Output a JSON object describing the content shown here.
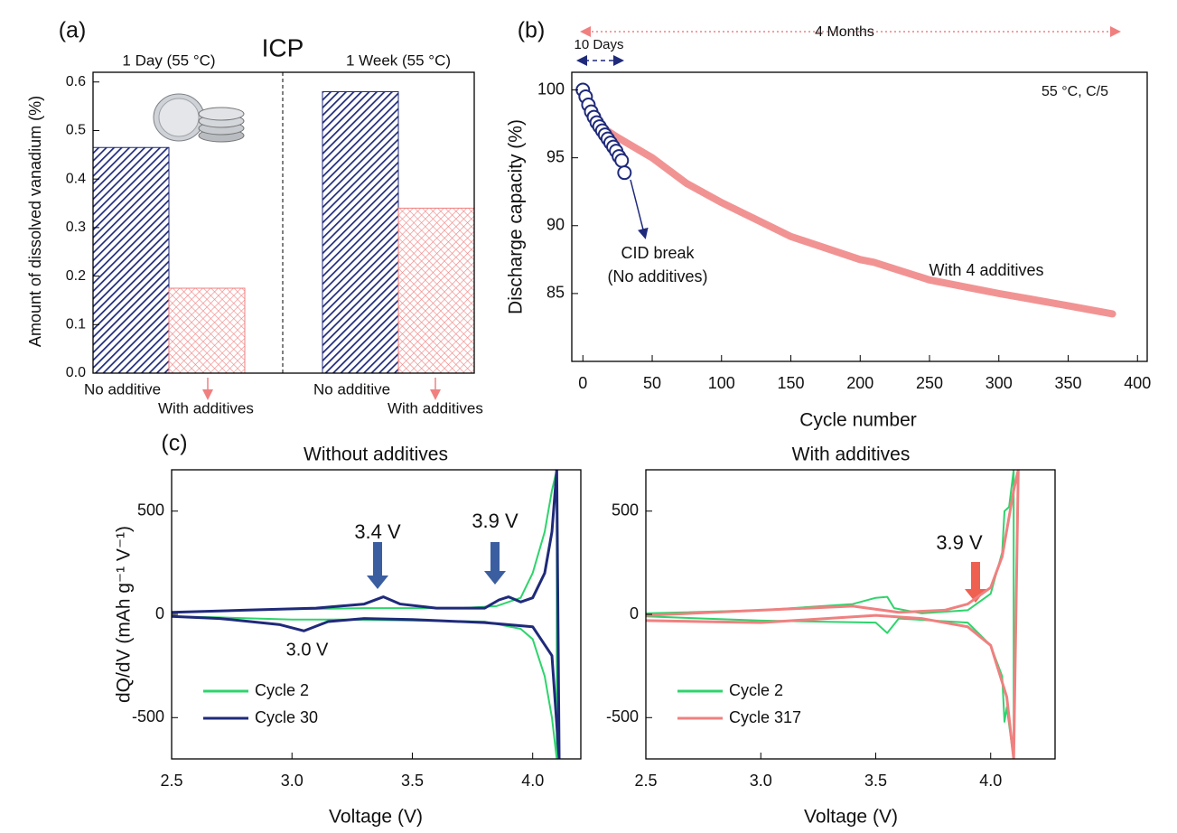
{
  "chart_data": [
    {
      "type": "bar",
      "panel_label": "(a)",
      "title": "ICP",
      "y_label": "Amount of dissolved vanadium (%)",
      "categories": [
        "1 Day (55 °C)",
        "1 Week (55 °C)"
      ],
      "series": [
        {
          "name": "No additive",
          "color": "#1f2a7a",
          "values": [
            0.465,
            0.58
          ]
        },
        {
          "name": "With additives",
          "color": "#f08080",
          "values": [
            0.175,
            0.34
          ]
        }
      ],
      "ylim": [
        0,
        0.62
      ],
      "yticks": [
        {
          "value": 0,
          "label": "0.0"
        },
        0.1,
        0.2,
        0.3,
        0.4,
        0.5,
        0.6
      ]
    },
    {
      "type": "scatter",
      "panel_label": "(b)",
      "x_label": "Cycle number",
      "y_label": "Discharge capacity (%)",
      "annotations": [
        "10 Days",
        "4 Months",
        "55 °C, C/5",
        "CID break",
        "(No additives)"
      ],
      "series": [
        {
          "name": "With 4 additives",
          "color": "#f08080",
          "style": "line",
          "x": [
            0,
            10,
            25,
            50,
            75,
            100,
            150,
            200,
            210,
            250,
            300,
            350,
            382
          ],
          "values": [
            100,
            97.5,
            96.5,
            95,
            93.1,
            91.7,
            89.2,
            87.5,
            87.3,
            86,
            85,
            84.1,
            83.5
          ]
        },
        {
          "color": "#1f2a7a",
          "style": "markers",
          "x": [
            0,
            2,
            4,
            6,
            8,
            10,
            12,
            14,
            16,
            18,
            20,
            22,
            24,
            26,
            28,
            30
          ],
          "values": [
            100,
            99.5,
            98.9,
            98.4,
            98,
            97.6,
            97.3,
            97,
            96.7,
            96.4,
            96.1,
            95.8,
            95.5,
            95.1,
            94.8,
            93.9
          ]
        }
      ],
      "xlim": [
        -8,
        407
      ],
      "ylim": [
        80,
        101.3
      ],
      "xticks": [
        0,
        50,
        100,
        150,
        200,
        250,
        300,
        350,
        400
      ],
      "yticks": [
        85,
        90,
        95,
        100
      ]
    },
    {
      "type": "line",
      "panel_label": "(c)",
      "title": "Without additives",
      "x_label": "Voltage (V)",
      "y_label": "dQ/dV (mAh g⁻¹ V⁻¹)",
      "annotations": [
        "3.4 V",
        "3.9 V",
        "3.0 V"
      ],
      "legend": "lower left",
      "series": [
        {
          "name": "Cycle 2",
          "color": "#2ed46c",
          "x": [
            2.5,
            2.8,
            3.0,
            3.3,
            3.5,
            3.7,
            3.85,
            3.95,
            4.0,
            4.05,
            4.08,
            4.1,
            4.1,
            4.08,
            4.05,
            4.0,
            3.95,
            3.8,
            3.5,
            3.2,
            3.0,
            2.7,
            2.5
          ],
          "values": [
            10,
            20,
            25,
            30,
            30,
            30,
            40,
            80,
            200,
            400,
            600,
            700,
            -700,
            -500,
            -300,
            -120,
            -70,
            -35,
            -30,
            -25,
            -25,
            -15,
            -10
          ]
        },
        {
          "name": "Cycle 30",
          "color": "#1f2a7a",
          "x": [
            2.5,
            2.8,
            3.1,
            3.3,
            3.38,
            3.45,
            3.6,
            3.8,
            3.86,
            3.9,
            3.95,
            4.0,
            4.05,
            4.08,
            4.1,
            4.11,
            4.08,
            4.0,
            3.8,
            3.5,
            3.3,
            3.15,
            3.05,
            2.95,
            2.7,
            2.5
          ],
          "values": [
            10,
            20,
            30,
            50,
            85,
            50,
            30,
            30,
            70,
            85,
            60,
            80,
            200,
            400,
            700,
            -700,
            -200,
            -60,
            -40,
            -25,
            -20,
            -35,
            -80,
            -50,
            -20,
            -10
          ]
        }
      ],
      "xlim": [
        2.5,
        4.2
      ],
      "ylim": [
        -700,
        700
      ],
      "xticks": [
        2.5,
        {
          "value": 3,
          "label": "3.0"
        },
        3.5,
        {
          "value": 4,
          "label": "4.0"
        }
      ],
      "yticks": [
        -500,
        0,
        500
      ]
    },
    {
      "type": "line",
      "title": "With additives",
      "x_label": "Voltage (V)",
      "annotations": [
        "3.9 V"
      ],
      "legend": "lower left",
      "series": [
        {
          "name": "Cycle 2",
          "color": "#2ed46c",
          "x": [
            2.5,
            3.0,
            3.4,
            3.5,
            3.55,
            3.58,
            3.7,
            3.9,
            4.0,
            4.05,
            4.06,
            4.08,
            4.1,
            4.1,
            4.07,
            4.06,
            4.05,
            4.0,
            3.9,
            3.6,
            3.55,
            3.5,
            3.0,
            2.5
          ],
          "values": [
            5,
            20,
            50,
            80,
            85,
            30,
            5,
            20,
            100,
            300,
            500,
            520,
            700,
            -700,
            -450,
            -520,
            -300,
            -150,
            -40,
            -20,
            -90,
            -40,
            -30,
            -10
          ]
        },
        {
          "name": "Cycle 317",
          "color": "#f08080",
          "x": [
            2.5,
            3.0,
            3.4,
            3.6,
            3.8,
            3.9,
            4.0,
            4.05,
            4.1,
            4.12,
            4.1,
            4.07,
            4.0,
            3.9,
            3.7,
            3.5,
            3.0,
            2.5
          ],
          "values": [
            -5,
            20,
            40,
            10,
            20,
            50,
            130,
            280,
            600,
            700,
            -700,
            -400,
            -150,
            -60,
            -20,
            -5,
            -40,
            -30
          ]
        }
      ],
      "xlim": [
        2.5,
        4.28
      ],
      "ylim": [
        -700,
        700
      ],
      "xticks": [
        2.5,
        {
          "value": 3,
          "label": "3.0"
        },
        3.5,
        {
          "value": 4,
          "label": "4.0"
        }
      ],
      "yticks": [
        -500,
        0,
        500
      ]
    }
  ]
}
